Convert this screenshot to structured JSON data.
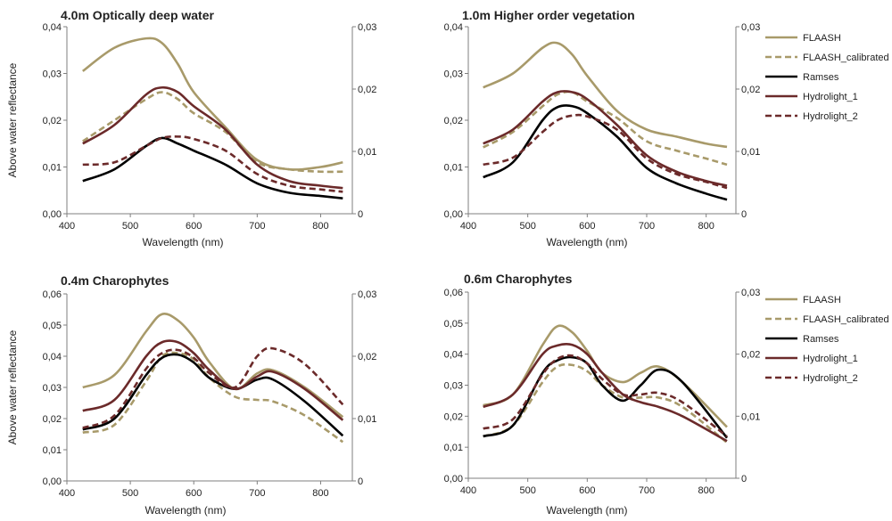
{
  "colors": {
    "FLAASH": "#a89a6a",
    "FLAASH_calibrated": "#a89a6a",
    "Ramses": "#000000",
    "Hydrolight_1": "#6b2a2a",
    "Hydrolight_2": "#6b2a2a",
    "axis": "#7f7f7f"
  },
  "chart_data": [
    {
      "type": "line",
      "title": "4.0m Optically deep water",
      "xlabel": "Wavelength (nm)",
      "ylabel": "Above water reflectance",
      "xlim": [
        400,
        850
      ],
      "xticks": [
        "400",
        "500",
        "600",
        "700",
        "800"
      ],
      "ylim": [
        0,
        0.04
      ],
      "yticks": [
        "0,00",
        "0,01",
        "0,02",
        "0,03",
        "0,04"
      ],
      "y2lim": [
        0,
        0.03
      ],
      "y2ticks": [
        "0",
        "0,01",
        "0,02",
        "0,03"
      ],
      "x": [
        425,
        475,
        525,
        550,
        575,
        600,
        650,
        700,
        750,
        800,
        835
      ],
      "series": [
        {
          "name": "FLAASH",
          "dash": "solid",
          "values": [
            0.0305,
            0.0355,
            0.0375,
            0.0365,
            0.032,
            0.026,
            0.0185,
            0.0115,
            0.0095,
            0.01,
            0.011
          ]
        },
        {
          "name": "FLAASH_calibrated",
          "dash": "dashed",
          "values": [
            0.0155,
            0.02,
            0.0245,
            0.026,
            0.0245,
            0.0215,
            0.0175,
            0.011,
            0.0095,
            0.009,
            0.009
          ]
        },
        {
          "name": "Ramses",
          "dash": "solid",
          "values": [
            0.007,
            0.0095,
            0.0145,
            0.0162,
            0.015,
            0.0135,
            0.0105,
            0.0065,
            0.0045,
            0.0038,
            0.0033
          ]
        },
        {
          "name": "Hydrolight_1",
          "dash": "solid",
          "values": [
            0.015,
            0.019,
            0.0255,
            0.027,
            0.026,
            0.023,
            0.018,
            0.0105,
            0.007,
            0.006,
            0.0055
          ]
        },
        {
          "name": "Hydrolight_2",
          "dash": "dashed",
          "values": [
            0.0105,
            0.011,
            0.0145,
            0.0162,
            0.0165,
            0.016,
            0.0135,
            0.0085,
            0.006,
            0.0052,
            0.0047
          ]
        }
      ]
    },
    {
      "type": "line",
      "title": "1.0m Higher order vegetation",
      "xlabel": "Wavelength (nm)",
      "ylabel": "",
      "xlim": [
        400,
        850
      ],
      "xticks": [
        "400",
        "500",
        "600",
        "700",
        "800"
      ],
      "ylim": [
        0,
        0.04
      ],
      "yticks": [
        "0,00",
        "0,01",
        "0,02",
        "0,03",
        "0,04"
      ],
      "y2lim": [
        0,
        0.03
      ],
      "y2ticks": [
        "0",
        "0,01",
        "0,02",
        "0,03"
      ],
      "x": [
        425,
        475,
        525,
        550,
        575,
        600,
        650,
        700,
        750,
        800,
        835
      ],
      "series": [
        {
          "name": "FLAASH",
          "dash": "solid",
          "values": [
            0.027,
            0.03,
            0.0355,
            0.0365,
            0.034,
            0.0295,
            0.022,
            0.018,
            0.0165,
            0.015,
            0.0143
          ]
        },
        {
          "name": "FLAASH_calibrated",
          "dash": "dashed",
          "values": [
            0.0142,
            0.0175,
            0.023,
            0.0255,
            0.026,
            0.024,
            0.0205,
            0.0155,
            0.0135,
            0.0118,
            0.0105
          ]
        },
        {
          "name": "Ramses",
          "dash": "solid",
          "values": [
            0.0078,
            0.011,
            0.02,
            0.0228,
            0.023,
            0.0215,
            0.0165,
            0.0098,
            0.0065,
            0.0043,
            0.003
          ]
        },
        {
          "name": "Hydrolight_1",
          "dash": "solid",
          "values": [
            0.015,
            0.018,
            0.024,
            0.026,
            0.026,
            0.0245,
            0.019,
            0.0125,
            0.009,
            0.007,
            0.006
          ]
        },
        {
          "name": "Hydrolight_2",
          "dash": "dashed",
          "values": [
            0.0105,
            0.012,
            0.0175,
            0.02,
            0.021,
            0.0208,
            0.018,
            0.0118,
            0.0085,
            0.0068,
            0.0055
          ]
        }
      ]
    },
    {
      "type": "line",
      "title": "0.4m Charophytes",
      "xlabel": "Wavelength (nm)",
      "ylabel": "Above water reflectance",
      "xlim": [
        400,
        850
      ],
      "xticks": [
        "400",
        "500",
        "600",
        "700",
        "800"
      ],
      "ylim": [
        0,
        0.06
      ],
      "yticks": [
        "0,00",
        "0,01",
        "0,02",
        "0,03",
        "0,04",
        "0,05",
        "0,06"
      ],
      "y2lim": [
        0,
        0.03
      ],
      "y2ticks": [
        "0",
        "0,01",
        "0,02",
        "0,03"
      ],
      "x": [
        425,
        475,
        525,
        550,
        575,
        600,
        625,
        665,
        700,
        725,
        775,
        835
      ],
      "series": [
        {
          "name": "FLAASH",
          "dash": "solid",
          "values": [
            0.03,
            0.034,
            0.048,
            0.0535,
            0.0515,
            0.046,
            0.038,
            0.0295,
            0.0345,
            0.0355,
            0.03,
            0.0205
          ]
        },
        {
          "name": "FLAASH_calibrated",
          "dash": "dashed",
          "values": [
            0.0155,
            0.018,
            0.032,
            0.04,
            0.041,
            0.039,
            0.033,
            0.027,
            0.026,
            0.0255,
            0.021,
            0.0125
          ]
        },
        {
          "name": "Ramses",
          "dash": "solid",
          "values": [
            0.0165,
            0.02,
            0.034,
            0.0395,
            0.0405,
            0.038,
            0.033,
            0.0295,
            0.0325,
            0.0325,
            0.0255,
            0.0145
          ]
        },
        {
          "name": "Hydrolight_1",
          "dash": "solid",
          "values": [
            0.0225,
            0.026,
            0.04,
            0.0445,
            0.0445,
            0.041,
            0.0355,
            0.0295,
            0.0335,
            0.035,
            0.0295,
            0.0195
          ]
        },
        {
          "name": "Hydrolight_2",
          "dash": "dashed",
          "values": [
            0.017,
            0.021,
            0.036,
            0.041,
            0.042,
            0.0395,
            0.0345,
            0.03,
            0.04,
            0.0425,
            0.0375,
            0.0245
          ]
        }
      ]
    },
    {
      "type": "line",
      "title": "0.6m Charophytes",
      "xlabel": "Wavelength (nm)",
      "ylabel": "",
      "xlim": [
        400,
        850
      ],
      "xticks": [
        "400",
        "500",
        "600",
        "700",
        "800"
      ],
      "ylim": [
        0,
        0.06
      ],
      "yticks": [
        "0,00",
        "0,01",
        "0,02",
        "0,03",
        "0,04",
        "0,05",
        "0,06"
      ],
      "y2lim": [
        0,
        0.03
      ],
      "y2ticks": [
        "0",
        "0,01",
        "0,02",
        "0,03"
      ],
      "x": [
        425,
        475,
        525,
        550,
        575,
        600,
        625,
        660,
        690,
        720,
        760,
        835
      ],
      "series": [
        {
          "name": "FLAASH",
          "dash": "solid",
          "values": [
            0.0235,
            0.027,
            0.043,
            0.049,
            0.047,
            0.041,
            0.034,
            0.031,
            0.034,
            0.036,
            0.031,
            0.0165
          ]
        },
        {
          "name": "FLAASH_calibrated",
          "dash": "dashed",
          "values": [
            0.0135,
            0.017,
            0.031,
            0.036,
            0.0365,
            0.0345,
            0.03,
            0.026,
            0.026,
            0.026,
            0.023,
            0.0115
          ]
        },
        {
          "name": "Ramses",
          "dash": "solid",
          "values": [
            0.0135,
            0.017,
            0.034,
            0.038,
            0.039,
            0.037,
            0.03,
            0.025,
            0.03,
            0.035,
            0.031,
            0.013
          ]
        },
        {
          "name": "Hydrolight_1",
          "dash": "solid",
          "values": [
            0.023,
            0.027,
            0.04,
            0.0428,
            0.043,
            0.04,
            0.034,
            0.027,
            0.0245,
            0.023,
            0.02,
            0.012
          ]
        },
        {
          "name": "Hydrolight_2",
          "dash": "dashed",
          "values": [
            0.016,
            0.019,
            0.0335,
            0.0385,
            0.0395,
            0.037,
            0.032,
            0.027,
            0.027,
            0.0275,
            0.0245,
            0.0135
          ]
        }
      ]
    }
  ],
  "legend": {
    "entries": [
      {
        "label": "FLAASH",
        "series": "FLAASH",
        "dash": "solid"
      },
      {
        "label": "FLAASH_calibrated",
        "series": "FLAASH_calibrated",
        "dash": "dashed"
      },
      {
        "label": "Ramses",
        "series": "Ramses",
        "dash": "solid"
      },
      {
        "label": "Hydrolight_1",
        "series": "Hydrolight_1",
        "dash": "solid"
      },
      {
        "label": "Hydrolight_2",
        "series": "Hydrolight_2",
        "dash": "dashed"
      }
    ]
  }
}
